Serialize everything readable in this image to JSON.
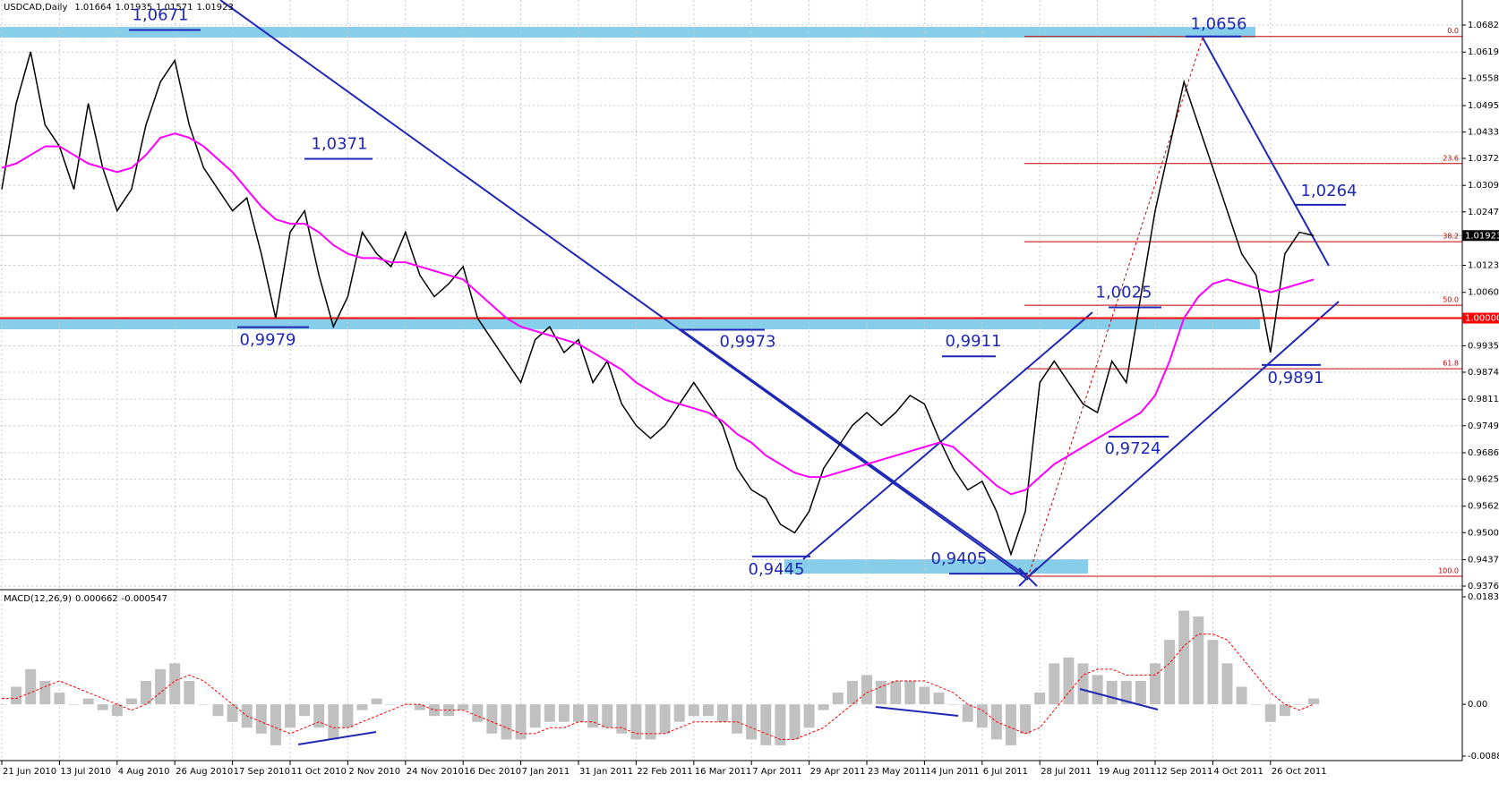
{
  "chart_data": [
    {
      "type": "line",
      "title": "USDCAD,Daily",
      "ohlc": [
        1.01664,
        1.01935,
        1.01571,
        1.01923
      ],
      "categories": [
        "21 Jun 2010",
        null,
        null,
        null,
        "13 Jul 2010",
        null,
        null,
        null,
        "4 Aug 2010",
        null,
        null,
        null,
        "26 Aug 2010",
        null,
        null,
        null,
        "17 Sep 2010",
        null,
        null,
        null,
        "11 Oct 2010",
        null,
        null,
        null,
        "2 Nov 2010",
        null,
        null,
        null,
        "24 Nov 2010",
        null,
        null,
        null,
        "16 Dec 2010",
        null,
        null,
        null,
        "7 Jan 2011",
        null,
        null,
        null,
        "31 Jan 2011",
        null,
        null,
        null,
        "22 Feb 2011",
        null,
        null,
        null,
        "16 Mar 2011",
        null,
        null,
        null,
        "7 Apr 2011",
        null,
        null,
        null,
        "29 Apr 2011",
        null,
        null,
        null,
        "23 May 2011",
        null,
        null,
        null,
        "14 Jun 2011",
        null,
        null,
        null,
        "6 Jul 2011",
        null,
        null,
        null,
        "28 Jul 2011",
        null,
        null,
        null,
        "19 Aug 2011",
        null,
        null,
        null,
        "12 Sep 2011",
        null,
        null,
        null,
        "4 Oct 2011",
        null,
        null,
        null,
        "26 Oct 2011",
        null,
        null,
        null
      ],
      "series": [
        {
          "color": "#000000",
          "values": [
            1.03,
            1.05,
            1.062,
            1.045,
            1.04,
            1.03,
            1.05,
            1.035,
            1.025,
            1.03,
            1.045,
            1.055,
            1.06,
            1.045,
            1.035,
            1.03,
            1.025,
            1.028,
            1.015,
            1.0,
            1.02,
            1.025,
            1.01,
            0.998,
            1.005,
            1.02,
            1.015,
            1.012,
            1.02,
            1.01,
            1.005,
            1.008,
            1.012,
            1.0,
            0.995,
            0.99,
            0.985,
            0.995,
            0.998,
            0.992,
            0.995,
            0.985,
            0.99,
            0.98,
            0.975,
            0.972,
            0.975,
            0.98,
            0.985,
            0.98,
            0.975,
            0.965,
            0.96,
            0.958,
            0.952,
            0.95,
            0.955,
            0.965,
            0.97,
            0.975,
            0.978,
            0.975,
            0.978,
            0.982,
            0.98,
            0.972,
            0.965,
            0.96,
            0.962,
            0.955,
            0.945,
            0.955,
            0.985,
            0.99,
            0.985,
            0.98,
            0.978,
            0.99,
            0.985,
            1.005,
            1.025,
            1.04,
            1.055,
            1.045,
            1.035,
            1.025,
            1.015,
            1.01,
            0.992,
            1.015,
            1.02,
            1.01923
          ]
        },
        {
          "color": "#ff00ff",
          "values": [
            1.035,
            1.036,
            1.038,
            1.04,
            1.04,
            1.038,
            1.036,
            1.035,
            1.034,
            1.035,
            1.038,
            1.042,
            1.043,
            1.042,
            1.04,
            1.037,
            1.034,
            1.03,
            1.026,
            1.023,
            1.022,
            1.022,
            1.02,
            1.017,
            1.015,
            1.014,
            1.014,
            1.013,
            1.013,
            1.012,
            1.011,
            1.01,
            1.009,
            1.006,
            1.003,
            1.0,
            0.998,
            0.997,
            0.996,
            0.995,
            0.994,
            0.992,
            0.99,
            0.988,
            0.985,
            0.983,
            0.981,
            0.98,
            0.979,
            0.978,
            0.976,
            0.973,
            0.971,
            0.968,
            0.966,
            0.964,
            0.963,
            0.963,
            0.964,
            0.965,
            0.966,
            0.967,
            0.968,
            0.969,
            0.97,
            0.971,
            0.97,
            0.967,
            0.964,
            0.961,
            0.959,
            0.96,
            0.963,
            0.966,
            0.968,
            0.97,
            0.972,
            0.974,
            0.976,
            0.978,
            0.982,
            0.99,
            1.0,
            1.005,
            1.008,
            1.009,
            1.008,
            1.007,
            1.006,
            1.007,
            1.008,
            1.009
          ]
        }
      ],
      "ylim": [
        0.9376,
        1.06825
      ],
      "yticks": [
        {
          "value": 1.06825,
          "label": "1.06825"
        },
        {
          "value": 1.06195,
          "label": "1.06195"
        },
        {
          "value": 1.0558,
          "label": "1.05580"
        },
        {
          "value": 1.0495,
          "label": "1.04950"
        },
        {
          "value": 1.04335,
          "label": "1.04335"
        },
        {
          "value": 1.0372,
          "label": "1.03720"
        },
        {
          "value": 1.0309,
          "label": "1.03090"
        },
        {
          "value": 1.02475,
          "label": "1.02475"
        },
        {
          "value": 1.0123,
          "label": "1.01230"
        },
        {
          "value": 1.006,
          "label": "1.00600"
        },
        {
          "value": 0.99355,
          "label": "0.99355"
        },
        {
          "value": 0.9874,
          "label": "0.98740"
        },
        {
          "value": 0.9811,
          "label": "0.98110"
        },
        {
          "value": 0.97495,
          "label": "0.97495"
        },
        {
          "value": 0.96865,
          "label": "0.96865"
        },
        {
          "value": 0.9625,
          "label": "0.96250"
        },
        {
          "value": 0.9562,
          "label": "0.95620"
        },
        {
          "value": 0.95005,
          "label": "0.95005"
        },
        {
          "value": 0.94375,
          "label": "0.94375"
        },
        {
          "value": 0.9376,
          "label": "0.93760"
        }
      ],
      "level": {
        "value": 1,
        "label": "1.00000"
      },
      "fibo": [
        {
          "label": "0.0",
          "value": 1.0656
        },
        {
          "label": "23.6",
          "value": 1.036
        },
        {
          "label": "38.2",
          "value": 1.0178
        },
        {
          "label": "50.0",
          "value": 1.003
        },
        {
          "label": "61.8",
          "value": 0.9882
        },
        {
          "label": "100.0",
          "value": 0.9399
        }
      ],
      "annotations": [
        {
          "value": 1.0671,
          "label": "1,0671"
        },
        {
          "value": 1.0371,
          "label": "1,0371"
        },
        {
          "value": 0.9979,
          "label": "0,9979"
        },
        {
          "value": 0.9973,
          "label": "0,9973"
        },
        {
          "value": 0.9911,
          "label": "0,9911"
        },
        {
          "value": 1.0025,
          "label": "1,0025"
        },
        {
          "value": 0.9724,
          "label": "0,9724"
        },
        {
          "value": 0.9445,
          "label": "0,9445"
        },
        {
          "value": 0.9405,
          "label": "0,9405"
        },
        {
          "value": 1.0656,
          "label": "1,0656"
        },
        {
          "value": 1.0264,
          "label": "1,0264"
        },
        {
          "value": 0.9891,
          "label": "0,9891"
        }
      ],
      "grid": true
    },
    {
      "type": "bar",
      "title": "MACD(12,26,9)",
      "readings": [
        0.000662,
        -0.000547
      ],
      "series": [
        {
          "color": "#c0c0c0",
          "values": [
            0.0,
            0.003,
            0.006,
            0.004,
            0.002,
            0.0,
            0.001,
            -0.001,
            -0.002,
            0.001,
            0.004,
            0.006,
            0.007,
            0.004,
            0.0,
            -0.002,
            -0.003,
            -0.004,
            -0.005,
            -0.007,
            -0.004,
            -0.002,
            -0.004,
            -0.006,
            -0.004,
            -0.001,
            0.001,
            0.0,
            0.0,
            -0.001,
            -0.002,
            -0.002,
            -0.001,
            -0.003,
            -0.005,
            -0.006,
            -0.006,
            -0.004,
            -0.003,
            -0.003,
            -0.003,
            -0.004,
            -0.004,
            -0.005,
            -0.006,
            -0.006,
            -0.005,
            -0.003,
            -0.002,
            -0.002,
            -0.003,
            -0.005,
            -0.006,
            -0.007,
            -0.007,
            -0.006,
            -0.004,
            -0.001,
            0.002,
            0.004,
            0.005,
            0.004,
            0.004,
            0.004,
            0.003,
            0.002,
            0.0,
            -0.003,
            -0.004,
            -0.006,
            -0.007,
            -0.005,
            0.002,
            0.007,
            0.008,
            0.007,
            0.005,
            0.004,
            0.004,
            0.004,
            0.007,
            0.011,
            0.016,
            0.015,
            0.011,
            0.007,
            0.003,
            0.0,
            -0.003,
            -0.002,
            0.0,
            0.001
          ]
        },
        {
          "color": "#ff0000",
          "dashed": true,
          "values": [
            0.001,
            0.001,
            0.002,
            0.003,
            0.004,
            0.003,
            0.002,
            0.001,
            0.0,
            -0.001,
            0.0,
            0.002,
            0.004,
            0.005,
            0.004,
            0.002,
            0.0,
            -0.002,
            -0.003,
            -0.004,
            -0.005,
            -0.004,
            -0.003,
            -0.004,
            -0.004,
            -0.003,
            -0.002,
            -0.001,
            0.0,
            0.0,
            -0.001,
            -0.001,
            -0.001,
            -0.002,
            -0.003,
            -0.004,
            -0.005,
            -0.005,
            -0.004,
            -0.004,
            -0.003,
            -0.003,
            -0.004,
            -0.004,
            -0.005,
            -0.005,
            -0.005,
            -0.004,
            -0.003,
            -0.003,
            -0.003,
            -0.003,
            -0.004,
            -0.005,
            -0.006,
            -0.006,
            -0.005,
            -0.004,
            -0.002,
            0.0,
            0.002,
            0.003,
            0.004,
            0.004,
            0.004,
            0.003,
            0.002,
            0.0,
            -0.001,
            -0.003,
            -0.004,
            -0.005,
            -0.004,
            -0.001,
            0.002,
            0.005,
            0.006,
            0.006,
            0.005,
            0.005,
            0.005,
            0.007,
            0.01,
            0.012,
            0.012,
            0.011,
            0.008,
            0.005,
            0.002,
            0.0,
            -0.001,
            0.0
          ]
        }
      ],
      "ylim": [
        -0.00885,
        0.018363
      ],
      "yticks": [
        0.018363,
        {
          "value": 0,
          "label": "0.00"
        },
        -0.00885
      ]
    }
  ]
}
